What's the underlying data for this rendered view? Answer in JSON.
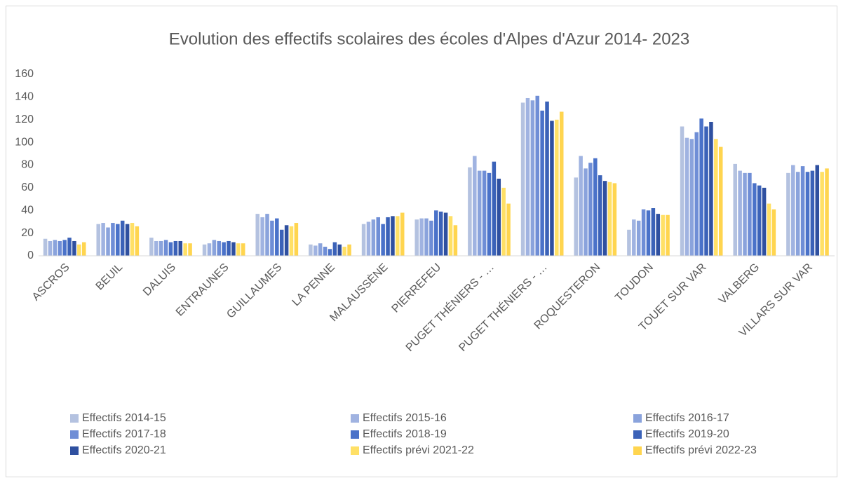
{
  "chart_data": {
    "type": "bar",
    "title": "Evolution des effectifs scolaires des écoles d'Alpes d'Azur 2014- 2023",
    "categories": [
      "ASCROS",
      "BEUIL",
      "DALUIS",
      "ENTRAUNES",
      "GUILLAUMES",
      "LA PENNE",
      "MALAUSSÈNE",
      "PIERREFEU",
      "PUGET THÉNIERS - …",
      "PUGET THÉNIERS - …",
      "ROQUESTERON",
      "TOUDON",
      "TOUET SUR VAR",
      "VALBERG",
      "VILLARS SUR VAR"
    ],
    "series": [
      {
        "name": "Effectifs 2014-15",
        "color": "#b4c2e0",
        "values": [
          15,
          28,
          16,
          10,
          37,
          10,
          28,
          32,
          78,
          135,
          69,
          23,
          114,
          81,
          73
        ]
      },
      {
        "name": "Effectifs 2015-16",
        "color": "#a0b3e1",
        "values": [
          13,
          29,
          13,
          11,
          34,
          9,
          30,
          33,
          88,
          139,
          88,
          32,
          104,
          75,
          80
        ]
      },
      {
        "name": "Effectifs 2016-17",
        "color": "#8aa3dc",
        "values": [
          14,
          25,
          13,
          14,
          37,
          11,
          32,
          33,
          75,
          137,
          77,
          31,
          103,
          73,
          74
        ]
      },
      {
        "name": "Effectifs 2017-18",
        "color": "#6f8ed6",
        "values": [
          13,
          29,
          14,
          13,
          31,
          8,
          34,
          31,
          75,
          141,
          82,
          41,
          109,
          73,
          79
        ]
      },
      {
        "name": "Effectifs 2018-19",
        "color": "#4a72c9",
        "values": [
          14,
          28,
          12,
          12,
          33,
          6,
          28,
          40,
          73,
          128,
          86,
          40,
          121,
          64,
          74
        ]
      },
      {
        "name": "Effectifs 2019-20",
        "color": "#3b62b8",
        "values": [
          16,
          31,
          13,
          13,
          23,
          12,
          34,
          39,
          83,
          136,
          71,
          42,
          114,
          62,
          75
        ]
      },
      {
        "name": "Effectifs 2020-21",
        "color": "#2f50a0",
        "values": [
          13,
          28,
          13,
          12,
          27,
          10,
          35,
          38,
          68,
          119,
          66,
          37,
          118,
          60,
          80
        ]
      },
      {
        "name": "Effectifs prévi 2021-22",
        "color": "#ffe066",
        "values": [
          10,
          29,
          11,
          11,
          26,
          8,
          35,
          35,
          60,
          120,
          65,
          36,
          103,
          46,
          74
        ]
      },
      {
        "name": "Effectifs prévi 2022-23",
        "color": "#ffd54f",
        "values": [
          12,
          26,
          11,
          11,
          29,
          10,
          38,
          27,
          46,
          127,
          64,
          36,
          96,
          41,
          77
        ]
      }
    ],
    "ylim": [
      0,
      160
    ],
    "yticks": [
      0,
      20,
      40,
      60,
      80,
      100,
      120,
      140,
      160
    ],
    "grid": false
  }
}
